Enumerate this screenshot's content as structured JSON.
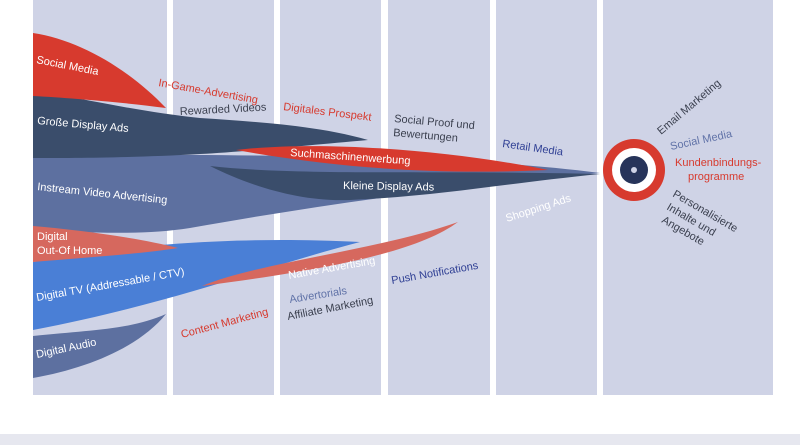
{
  "colors": {
    "column_bg": "#cfd3e6",
    "red": "#d73a2e",
    "red_light": "#d6685e",
    "navy": "#3a4d6b",
    "slate": "#5d70a0",
    "blue": "#4a7fd6",
    "text_dark": "#3a3f4e",
    "text_blue": "#2f3f94",
    "text_slate": "#6173a8",
    "target_navy": "#27345a"
  },
  "streams": {
    "social_media": "Social Media",
    "grosse_display_ads": "Große Display Ads",
    "instream_video": "Instream Video Advertising",
    "dooh_line1": "Digital",
    "dooh_line2": "Out-Of Home",
    "digital_tv": "Digital TV (Addressable / CTV)",
    "digital_audio": "Digital Audio"
  },
  "mid_labels": {
    "in_game": "In-Game-Advertising",
    "rewarded_videos": "Rewarded Videos",
    "digitales_prospekt": "Digitales Prospekt",
    "social_proof_line1": "Social Proof und",
    "social_proof_line2": "Bewertungen",
    "retail_media": "Retail Media",
    "suchmaschinenwerbung": "Suchmaschinenwerbung",
    "kleine_display_ads": "Kleine Display Ads",
    "shopping_ads": "Shopping Ads",
    "native_advertising": "Native Advertising",
    "push_notifications": "Push Notifications",
    "content_marketing": "Content Marketing",
    "advertorials": "Advertorials",
    "affiliate_marketing": "Affiliate Marketing"
  },
  "target_labels": {
    "email_marketing": "Email Marketing",
    "social_media": "Social Media",
    "kundenbindung_line1": "Kundenbindungs-",
    "kundenbindung_line2": "programme",
    "personalisiert_line1": "Personalisierte",
    "personalisiert_line2": "Inhalte und",
    "personalisiert_line3": "Angebote"
  }
}
